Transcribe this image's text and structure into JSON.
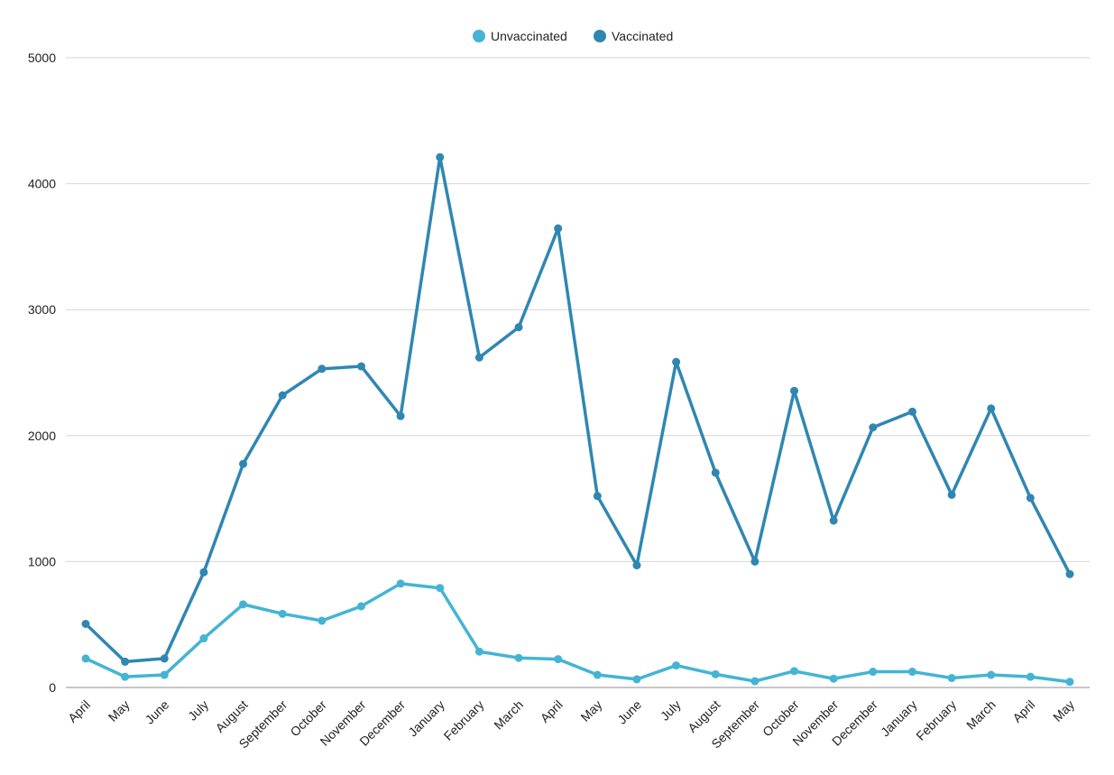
{
  "chart_data": {
    "type": "line",
    "categories": [
      "April",
      "May",
      "June",
      "July",
      "August",
      "September",
      "October",
      "November",
      "December",
      "January",
      "February",
      "March",
      "April",
      "May",
      "June",
      "July",
      "August",
      "September",
      "October",
      "November",
      "December",
      "January",
      "February",
      "March",
      "April",
      "May"
    ],
    "series": [
      {
        "name": "Unvaccinated",
        "color": "#44b4d4",
        "values": [
          230,
          85,
          100,
          390,
          660,
          585,
          530,
          645,
          825,
          790,
          285,
          235,
          225,
          100,
          65,
          175,
          105,
          50,
          130,
          70,
          125,
          125,
          75,
          100,
          85,
          45
        ]
      },
      {
        "name": "Vaccinated",
        "color": "#2f87b1",
        "values": [
          505,
          205,
          230,
          915,
          1775,
          2320,
          2530,
          2550,
          2155,
          4210,
          2620,
          2860,
          3645,
          1520,
          970,
          2585,
          1705,
          1000,
          2355,
          1325,
          2065,
          2190,
          1530,
          2215,
          1505,
          900
        ]
      }
    ],
    "y_ticks": [
      "0",
      "1000",
      "2000",
      "3000",
      "4000",
      "5000"
    ],
    "ylim": [
      0,
      5000
    ],
    "grid": true,
    "legend": "top-center"
  }
}
